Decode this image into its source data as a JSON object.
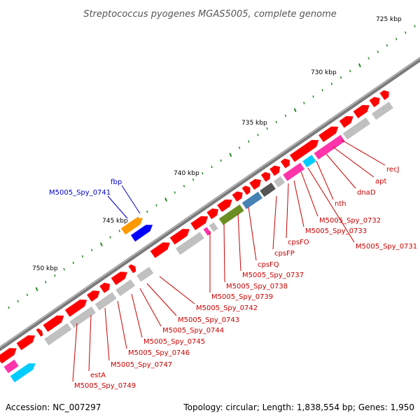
{
  "title": "Streptococcus pyogenes MGAS5005, complete genome",
  "footer": {
    "accession": "Accession: NC_007297",
    "summary": "Topology: circular; Length: 1,838,554 bp; Genes: 1,950"
  },
  "colors": {
    "backbone": "#8c8c8c",
    "cds": "#ff0000",
    "gray_feature": "#c0c0c0",
    "tick": "#228b22",
    "label_red": "#cc0000",
    "label_blue": "#0000cc",
    "orange": "#ff9900",
    "blue": "#0000ff",
    "cyan": "#00ccff",
    "magenta": "#ff33aa",
    "olive": "#6b8e23",
    "steel": "#4682b4",
    "darkgray": "#555555"
  },
  "scale": {
    "ticks": [
      {
        "label": "725 kbp"
      },
      {
        "label": "730 kbp"
      },
      {
        "label": "735 kbp"
      },
      {
        "label": "740 kbp"
      },
      {
        "label": "745 kbp"
      },
      {
        "label": "750 kbp"
      }
    ]
  },
  "labels_red": [
    "recJ",
    "apt",
    "dnaD",
    "nth",
    "M5005_Spy_0732",
    "cpsFO",
    "M5005_Spy_0733",
    "M5005_Spy_0731",
    "cpsFP",
    "cpsFQ",
    "M5005_Spy_0737",
    "M5005_Spy_0738",
    "M5005_Spy_0739",
    "M5005_Spy_0742",
    "M5005_Spy_0743",
    "M5005_Spy_0744",
    "M5005_Spy_0745",
    "M5005_Spy_0746",
    "M5005_Spy_0747",
    "estA",
    "M5005_Spy_0749"
  ],
  "labels_blue": [
    "fbp",
    "M5005_Spy_0741"
  ]
}
